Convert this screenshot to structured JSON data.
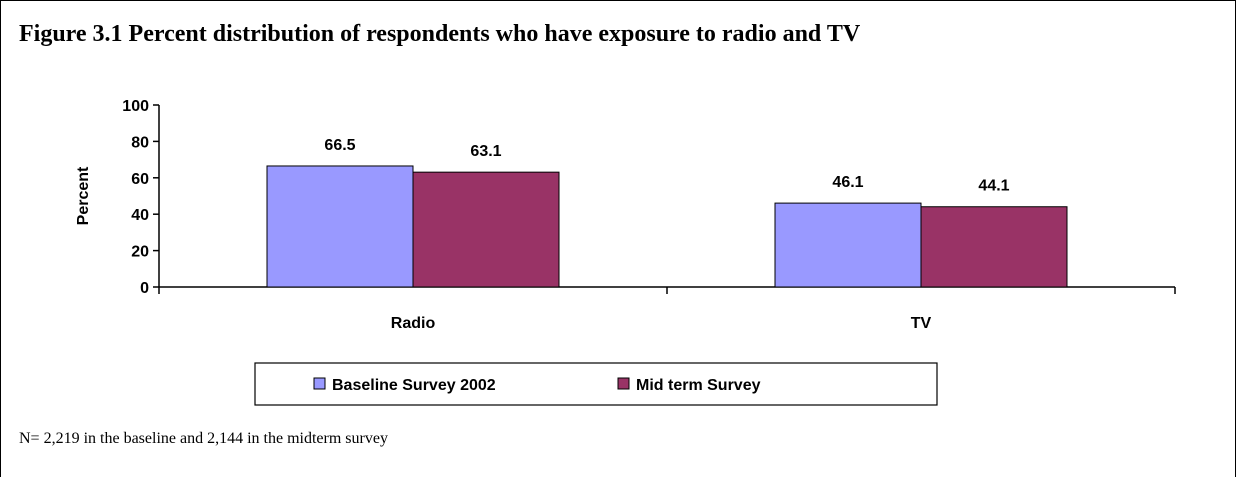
{
  "title": "Figure 3.1 Percent distribution of respondents who have exposure to radio and TV",
  "note": "N= 2,219 in the baseline and 2,144 in the midterm survey",
  "colors": {
    "baseline": "#9999FF",
    "midterm": "#993366"
  },
  "chart_data": {
    "type": "bar",
    "categories": [
      "Radio",
      "TV"
    ],
    "series": [
      {
        "name": "Baseline Survey 2002",
        "values": [
          66.5,
          46.1
        ]
      },
      {
        "name": "Mid term Survey",
        "values": [
          63.1,
          44.1
        ]
      }
    ],
    "ylabel": "Percent",
    "ylim": [
      0,
      100
    ],
    "yticks": [
      0,
      20,
      40,
      60,
      80,
      100
    ],
    "grid": false,
    "legend": "bottom"
  }
}
